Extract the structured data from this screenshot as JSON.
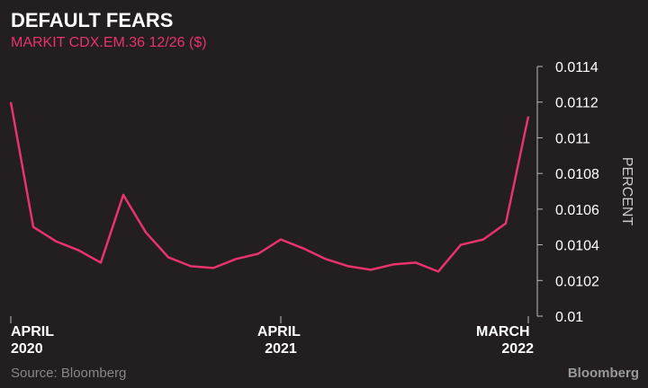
{
  "chart_data": {
    "type": "line",
    "title": "DEFAULT FEARS",
    "subtitle": "MARKIT CDX.EM.36 12/26 ($)",
    "y_label": "PERCENT",
    "source": "Source: Bloomberg",
    "brand": "Bloomberg",
    "x": [
      "2020-04",
      "2020-05",
      "2020-06",
      "2020-07",
      "2020-08",
      "2020-09",
      "2020-10",
      "2020-11",
      "2020-12",
      "2021-01",
      "2021-02",
      "2021-03",
      "2021-04",
      "2021-05",
      "2021-06",
      "2021-07",
      "2021-08",
      "2021-09",
      "2021-10",
      "2021-11",
      "2021-12",
      "2022-01",
      "2022-02",
      "2022-03"
    ],
    "series": [
      {
        "name": "MARKIT CDX.EM.36 12/26",
        "color": "#e8336d",
        "values": [
          0.0112,
          0.0105,
          0.01042,
          0.01037,
          0.0103,
          0.01068,
          0.01047,
          0.01033,
          0.01028,
          0.01027,
          0.01032,
          0.01035,
          0.01043,
          0.01038,
          0.01032,
          0.01028,
          0.01026,
          0.01029,
          0.0103,
          0.01025,
          0.0104,
          0.01043,
          0.01052,
          0.01112
        ]
      }
    ],
    "xticks": [
      {
        "value": "2020-04",
        "label": "APRIL 2020"
      },
      {
        "value": "2021-04",
        "label": "APRIL 2021"
      },
      {
        "value": "2022-03",
        "label": "MARCH 2022"
      }
    ],
    "ylim": [
      0.01,
      0.0114
    ],
    "yticks": [
      0.01,
      0.0102,
      0.0104,
      0.0106,
      0.0108,
      0.011,
      0.0112,
      0.0114
    ]
  }
}
